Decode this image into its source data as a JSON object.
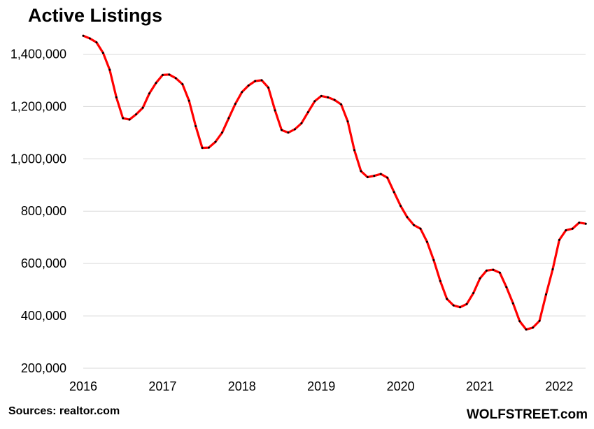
{
  "chart_data": {
    "type": "line",
    "title": "Active Listings",
    "xlabel": "",
    "ylabel": "",
    "ylim": [
      200000,
      1500000
    ],
    "yticks": [
      200000,
      400000,
      600000,
      800000,
      1000000,
      1200000,
      1400000
    ],
    "ytick_labels": [
      "200,000",
      "400,000",
      "600,000",
      "800,000",
      "1,000,000",
      "1,200,000",
      "1,400,000"
    ],
    "xlim": [
      2016,
      2022.333
    ],
    "xticks": [
      2016,
      2017,
      2018,
      2019,
      2020,
      2021,
      2022
    ],
    "xtick_labels": [
      "2016",
      "2017",
      "2018",
      "2019",
      "2020",
      "2021",
      "2022"
    ],
    "grid": true,
    "legend": "none",
    "series": [
      {
        "color": "#ff0000",
        "marker_color": "#000000",
        "start": "2016-01",
        "frequency": "monthly",
        "values": [
          1470000,
          1460000,
          1445000,
          1405000,
          1340000,
          1235000,
          1155000,
          1150000,
          1170000,
          1195000,
          1250000,
          1290000,
          1320000,
          1322000,
          1308000,
          1285000,
          1222000,
          1125000,
          1042000,
          1043000,
          1065000,
          1100000,
          1155000,
          1210000,
          1255000,
          1280000,
          1297000,
          1300000,
          1272000,
          1185000,
          1110000,
          1100000,
          1113000,
          1136000,
          1178000,
          1220000,
          1240000,
          1235000,
          1225000,
          1208000,
          1143000,
          1033000,
          953000,
          930000,
          935000,
          942000,
          928000,
          873000,
          820000,
          777000,
          747000,
          733000,
          683000,
          613000,
          533000,
          465000,
          440000,
          433000,
          445000,
          487000,
          543000,
          573000,
          576000,
          565000,
          510000,
          448000,
          380000,
          348000,
          355000,
          381000,
          482000,
          578000,
          690000,
          727000,
          733000,
          756000,
          752000
        ]
      }
    ]
  },
  "footer": {
    "source": "Sources: realtor.com",
    "brand": "WOLFSTREET.com"
  }
}
